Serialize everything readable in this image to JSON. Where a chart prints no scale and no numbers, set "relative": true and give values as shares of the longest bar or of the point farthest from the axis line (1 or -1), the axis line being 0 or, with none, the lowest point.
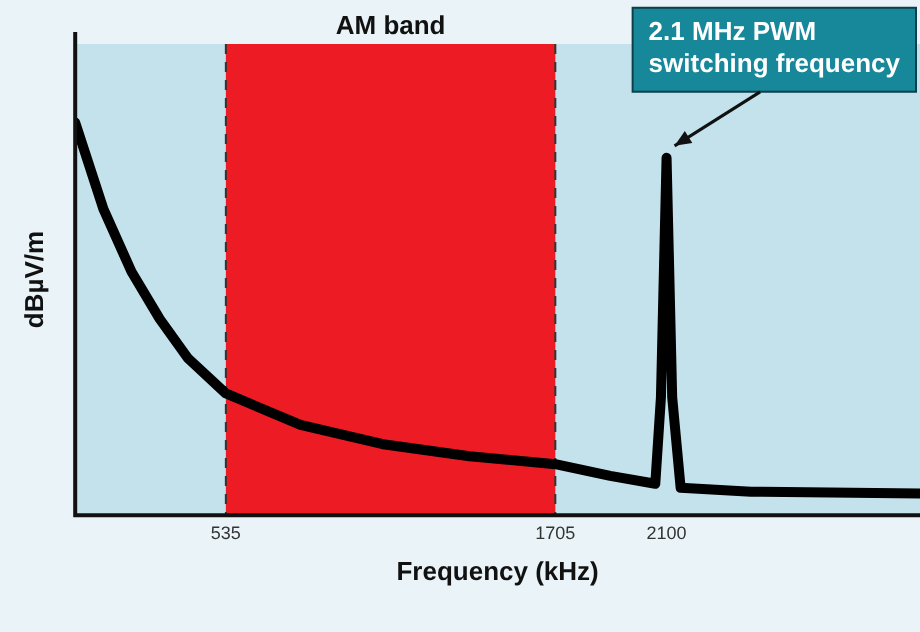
{
  "chart_data": {
    "type": "line",
    "relative": true,
    "xlabel": "Frequency (kHz)",
    "ylabel": "dBµV/m",
    "x": [
      0,
      100,
      200,
      300,
      400,
      535,
      800,
      1100,
      1400,
      1705,
      1900,
      2060,
      2080,
      2100,
      2120,
      2150,
      2400,
      3000
    ],
    "series": [
      {
        "color": "#000000",
        "values": [
          1.0,
          0.78,
          0.62,
          0.5,
          0.4,
          0.31,
          0.23,
          0.18,
          0.15,
          0.13,
          0.1,
          0.08,
          0.3,
          0.91,
          0.3,
          0.07,
          0.06,
          0.055
        ]
      }
    ],
    "xlim": [
      0,
      3000
    ],
    "xticks": [
      535,
      1705,
      2100
    ],
    "bands": [
      {
        "axis": "x",
        "from": 535,
        "to": 1705,
        "label": "AM band",
        "color": "#ed1c24"
      }
    ],
    "annotations": [
      {
        "text": "2.1 MHz PWM switching frequency",
        "x": 2100,
        "y": 0.91
      }
    ],
    "legend": false,
    "marker": "none",
    "line_style": "solid"
  }
}
